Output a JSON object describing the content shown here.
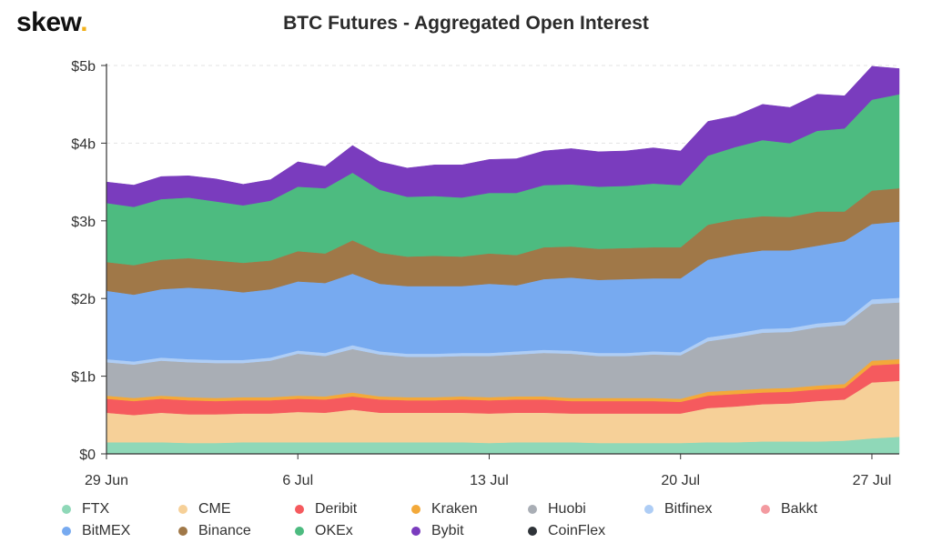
{
  "brand": {
    "name": "skew",
    "dot": "."
  },
  "chart_data": {
    "type": "area",
    "stacked": true,
    "title": "BTC Futures - Aggregated Open Interest",
    "xlabel": "",
    "ylabel": "",
    "x_dates": [
      "2020-06-29",
      "2020-06-30",
      "2020-07-01",
      "2020-07-02",
      "2020-07-03",
      "2020-07-04",
      "2020-07-05",
      "2020-07-06",
      "2020-07-07",
      "2020-07-08",
      "2020-07-09",
      "2020-07-10",
      "2020-07-11",
      "2020-07-12",
      "2020-07-13",
      "2020-07-14",
      "2020-07-15",
      "2020-07-16",
      "2020-07-17",
      "2020-07-18",
      "2020-07-19",
      "2020-07-20",
      "2020-07-21",
      "2020-07-22",
      "2020-07-23",
      "2020-07-24",
      "2020-07-25",
      "2020-07-26",
      "2020-07-27",
      "2020-07-28"
    ],
    "xticks": [
      "29 Jun",
      "6 Jul",
      "13 Jul",
      "20 Jul",
      "27 Jul"
    ],
    "yticks": [
      "$0",
      "$1b",
      "$2b",
      "$3b",
      "$4b",
      "$5b"
    ],
    "ylim": [
      0,
      5
    ],
    "y_unit": "USD billions",
    "grid": true,
    "legend_position": "bottom",
    "series": [
      {
        "name": "FTX",
        "color": "#8fd8b8",
        "values": [
          0.15,
          0.15,
          0.15,
          0.14,
          0.14,
          0.15,
          0.15,
          0.15,
          0.15,
          0.15,
          0.15,
          0.15,
          0.15,
          0.15,
          0.14,
          0.15,
          0.15,
          0.15,
          0.14,
          0.14,
          0.14,
          0.14,
          0.15,
          0.15,
          0.16,
          0.16,
          0.16,
          0.17,
          0.2,
          0.22
        ]
      },
      {
        "name": "CME",
        "color": "#f6d098",
        "values": [
          0.38,
          0.35,
          0.38,
          0.37,
          0.37,
          0.37,
          0.37,
          0.39,
          0.38,
          0.42,
          0.38,
          0.38,
          0.38,
          0.38,
          0.38,
          0.38,
          0.38,
          0.37,
          0.38,
          0.38,
          0.38,
          0.38,
          0.44,
          0.46,
          0.48,
          0.49,
          0.52,
          0.53,
          0.72,
          0.72
        ]
      },
      {
        "name": "Deribit",
        "color": "#f55a5e",
        "values": [
          0.18,
          0.18,
          0.18,
          0.18,
          0.17,
          0.17,
          0.17,
          0.17,
          0.17,
          0.17,
          0.17,
          0.16,
          0.16,
          0.17,
          0.17,
          0.17,
          0.17,
          0.16,
          0.16,
          0.16,
          0.16,
          0.15,
          0.16,
          0.16,
          0.15,
          0.15,
          0.15,
          0.15,
          0.22,
          0.22
        ]
      },
      {
        "name": "Kraken",
        "color": "#f3a93a",
        "values": [
          0.04,
          0.04,
          0.04,
          0.04,
          0.04,
          0.04,
          0.04,
          0.04,
          0.04,
          0.05,
          0.04,
          0.04,
          0.04,
          0.04,
          0.04,
          0.04,
          0.04,
          0.04,
          0.04,
          0.04,
          0.04,
          0.04,
          0.05,
          0.05,
          0.05,
          0.05,
          0.05,
          0.05,
          0.06,
          0.06
        ]
      },
      {
        "name": "Huobi",
        "color": "#a9aeb5",
        "values": [
          0.43,
          0.43,
          0.45,
          0.45,
          0.45,
          0.44,
          0.47,
          0.54,
          0.52,
          0.56,
          0.54,
          0.52,
          0.52,
          0.52,
          0.53,
          0.54,
          0.56,
          0.57,
          0.54,
          0.54,
          0.56,
          0.56,
          0.65,
          0.68,
          0.72,
          0.72,
          0.75,
          0.76,
          0.73,
          0.73
        ]
      },
      {
        "name": "Bitfinex",
        "color": "#aecdf5",
        "values": [
          0.04,
          0.04,
          0.04,
          0.04,
          0.04,
          0.04,
          0.04,
          0.04,
          0.04,
          0.05,
          0.04,
          0.04,
          0.04,
          0.04,
          0.04,
          0.04,
          0.04,
          0.04,
          0.04,
          0.04,
          0.04,
          0.04,
          0.05,
          0.05,
          0.05,
          0.05,
          0.05,
          0.05,
          0.06,
          0.06
        ]
      },
      {
        "name": "Bakkt",
        "color": "#f39aa0",
        "values": [
          0,
          0,
          0,
          0,
          0,
          0,
          0,
          0,
          0,
          0,
          0,
          0,
          0,
          0,
          0,
          0,
          0,
          0,
          0,
          0,
          0,
          0,
          0,
          0,
          0,
          0,
          0,
          0,
          0,
          0
        ]
      },
      {
        "name": "BitMEX",
        "color": "#77aaf0",
        "values": [
          0.88,
          0.86,
          0.88,
          0.92,
          0.91,
          0.87,
          0.88,
          0.89,
          0.9,
          0.92,
          0.87,
          0.87,
          0.87,
          0.86,
          0.89,
          0.85,
          0.91,
          0.94,
          0.94,
          0.95,
          0.94,
          0.95,
          1.0,
          1.02,
          1.01,
          1.0,
          1.0,
          1.03,
          0.97,
          0.98
        ]
      },
      {
        "name": "Binance",
        "color": "#a07848",
        "values": [
          0.37,
          0.38,
          0.38,
          0.38,
          0.37,
          0.38,
          0.37,
          0.39,
          0.38,
          0.43,
          0.4,
          0.38,
          0.39,
          0.38,
          0.39,
          0.39,
          0.41,
          0.4,
          0.4,
          0.4,
          0.4,
          0.4,
          0.45,
          0.45,
          0.44,
          0.43,
          0.44,
          0.38,
          0.43,
          0.43
        ]
      },
      {
        "name": "OKEx",
        "color": "#4dbb80",
        "values": [
          0.76,
          0.75,
          0.78,
          0.78,
          0.76,
          0.74,
          0.77,
          0.83,
          0.84,
          0.87,
          0.81,
          0.77,
          0.77,
          0.76,
          0.78,
          0.8,
          0.8,
          0.8,
          0.8,
          0.8,
          0.82,
          0.8,
          0.89,
          0.93,
          0.98,
          0.95,
          1.04,
          1.07,
          1.17,
          1.21
        ]
      },
      {
        "name": "Bybit",
        "color": "#7a3cbe",
        "values": [
          0.27,
          0.28,
          0.29,
          0.28,
          0.29,
          0.27,
          0.27,
          0.32,
          0.28,
          0.35,
          0.36,
          0.37,
          0.4,
          0.42,
          0.43,
          0.44,
          0.44,
          0.46,
          0.45,
          0.45,
          0.46,
          0.44,
          0.44,
          0.4,
          0.46,
          0.46,
          0.47,
          0.42,
          0.43,
          0.33
        ]
      },
      {
        "name": "CoinFlex",
        "color": "#2e3338",
        "values": [
          0,
          0,
          0,
          0,
          0,
          0,
          0,
          0,
          0,
          0,
          0,
          0,
          0,
          0,
          0,
          0,
          0,
          0,
          0,
          0,
          0,
          0,
          0,
          0,
          0,
          0,
          0,
          0,
          0,
          0
        ]
      }
    ]
  }
}
